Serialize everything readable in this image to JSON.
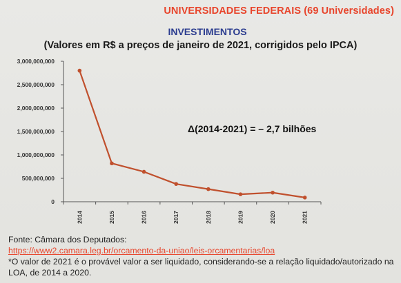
{
  "header": {
    "title": "UNIVERSIDADES FEDERAIS (69 Universidades)"
  },
  "colors": {
    "accent_red": "#e8452c",
    "title_blue": "#2b3c8f",
    "line": "#c0502d"
  },
  "chart_data": {
    "type": "line",
    "title": "INVESTIMENTOS",
    "subtitle": "(Valores em R$ a preços de janeiro de 2021, corrigidos pelo IPCA)",
    "categories": [
      "2014",
      "2015",
      "2016",
      "2017",
      "2018",
      "2019",
      "2020",
      "2021"
    ],
    "series": [
      {
        "values": [
          2800000000,
          820000000,
          640000000,
          380000000,
          270000000,
          160000000,
          195000000,
          90000000
        ]
      }
    ],
    "y_ticks": [
      "3,000,000,000",
      "2,500,000,000",
      "2,000,000,000",
      "1,500,000,000",
      "1,000,000,000",
      "500,000,000",
      "0"
    ],
    "ylim": [
      0,
      3000000000
    ],
    "annotation": "Δ(2014-2021) = – 2,7 bilhões",
    "grid": false,
    "legend": "none"
  },
  "footer": {
    "source_label": "Fonte: Câmara dos Deputados:",
    "source_link": "https://www2.camara.leg.br/orcamento-da-uniao/leis-orcamentarias/loa",
    "note": "*O valor de 2021 é o provável valor a ser liquidado, considerando-se a relação liquidado/autorizado na LOA, de 2014 a 2020."
  }
}
